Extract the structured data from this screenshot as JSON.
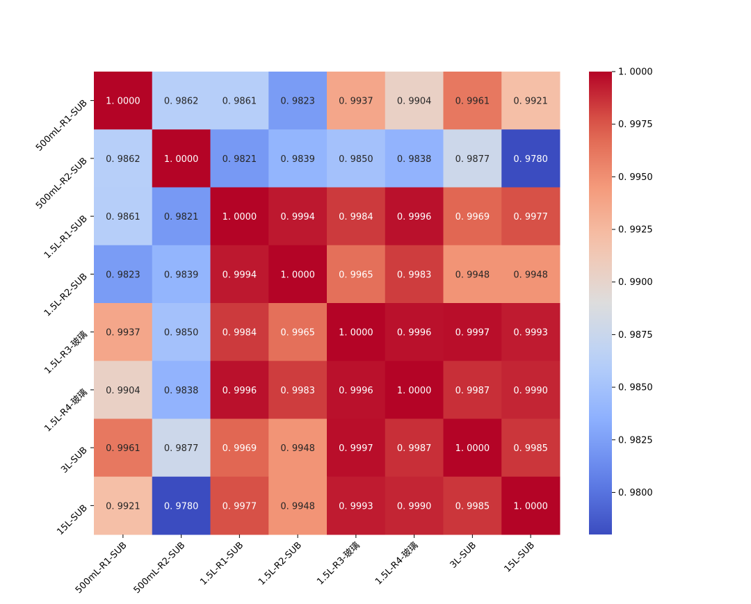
{
  "chart_data": {
    "type": "heatmap",
    "row_labels": [
      "500mL-R1-SUB",
      "500mL-R2-SUB",
      "1.5L-R1-SUB",
      "1.5L-R2-SUB",
      "1.5L-R3-玻璃",
      "1.5L-R4-玻璃",
      "3L-SUB",
      "15L-SUB"
    ],
    "col_labels": [
      "500mL-R1-SUB",
      "500mL-R2-SUB",
      "1.5L-R1-SUB",
      "1.5L-R2-SUB",
      "1.5L-R3-玻璃",
      "1.5L-R4-玻璃",
      "3L-SUB",
      "15L-SUB"
    ],
    "values": [
      [
        1.0,
        0.9862,
        0.9861,
        0.9823,
        0.9937,
        0.9904,
        0.9961,
        0.9921
      ],
      [
        0.9862,
        1.0,
        0.9821,
        0.9839,
        0.985,
        0.9838,
        0.9877,
        0.978
      ],
      [
        0.9861,
        0.9821,
        1.0,
        0.9994,
        0.9984,
        0.9996,
        0.9969,
        0.9977
      ],
      [
        0.9823,
        0.9839,
        0.9994,
        1.0,
        0.9965,
        0.9983,
        0.9948,
        0.9948
      ],
      [
        0.9937,
        0.985,
        0.9984,
        0.9965,
        1.0,
        0.9996,
        0.9997,
        0.9993
      ],
      [
        0.9904,
        0.9838,
        0.9996,
        0.9983,
        0.9996,
        1.0,
        0.9987,
        0.999
      ],
      [
        0.9961,
        0.9877,
        0.9969,
        0.9948,
        0.9997,
        0.9987,
        1.0,
        0.9985
      ],
      [
        0.9921,
        0.978,
        0.9977,
        0.9948,
        0.9993,
        0.999,
        0.9985,
        1.0
      ]
    ],
    "cell_labels": [
      [
        "1. 0000",
        "0. 9862",
        "0. 9861",
        "0. 9823",
        "0. 9937",
        "0. 9904",
        "0. 9961",
        "0. 9921"
      ],
      [
        "0. 9862",
        "1. 0000",
        "0. 9821",
        "0. 9839",
        "0. 9850",
        "0. 9838",
        "0. 9877",
        "0. 9780"
      ],
      [
        "0. 9861",
        "0. 9821",
        "1. 0000",
        "0. 9994",
        "0. 9984",
        "0. 9996",
        "0. 9969",
        "0. 9977"
      ],
      [
        "0. 9823",
        "0. 9839",
        "0. 9994",
        "1. 0000",
        "0. 9965",
        "0. 9983",
        "0. 9948",
        "0. 9948"
      ],
      [
        "0. 9937",
        "0. 9850",
        "0. 9984",
        "0. 9965",
        "1. 0000",
        "0. 9996",
        "0. 9997",
        "0. 9993"
      ],
      [
        "0. 9904",
        "0. 9838",
        "0. 9996",
        "0. 9983",
        "0. 9996",
        "1. 0000",
        "0. 9987",
        "0. 9990"
      ],
      [
        "0. 9961",
        "0. 9877",
        "0. 9969",
        "0. 9948",
        "0. 9997",
        "0. 9987",
        "1. 0000",
        "0. 9985"
      ],
      [
        "0. 9921",
        "0. 9780",
        "0. 9977",
        "0. 9948",
        "0. 9993",
        "0. 9990",
        "0. 9985",
        "1. 0000"
      ]
    ],
    "colorscale": "coolwarm",
    "vmin": 0.978,
    "vmax": 1.0,
    "colorbar_ticks": [
      1.0,
      0.9975,
      0.995,
      0.9925,
      0.99,
      0.9875,
      0.985,
      0.9825,
      0.98
    ],
    "colorbar_tick_labels": [
      "1. 0000",
      "0. 9975",
      "0. 9950",
      "0. 9925",
      "0. 9900",
      "0. 9875",
      "0. 9850",
      "0. 9825",
      "0. 9800"
    ],
    "title": "",
    "xlabel": "",
    "ylabel": "",
    "grid": false,
    "legend": "colorbar-right"
  }
}
